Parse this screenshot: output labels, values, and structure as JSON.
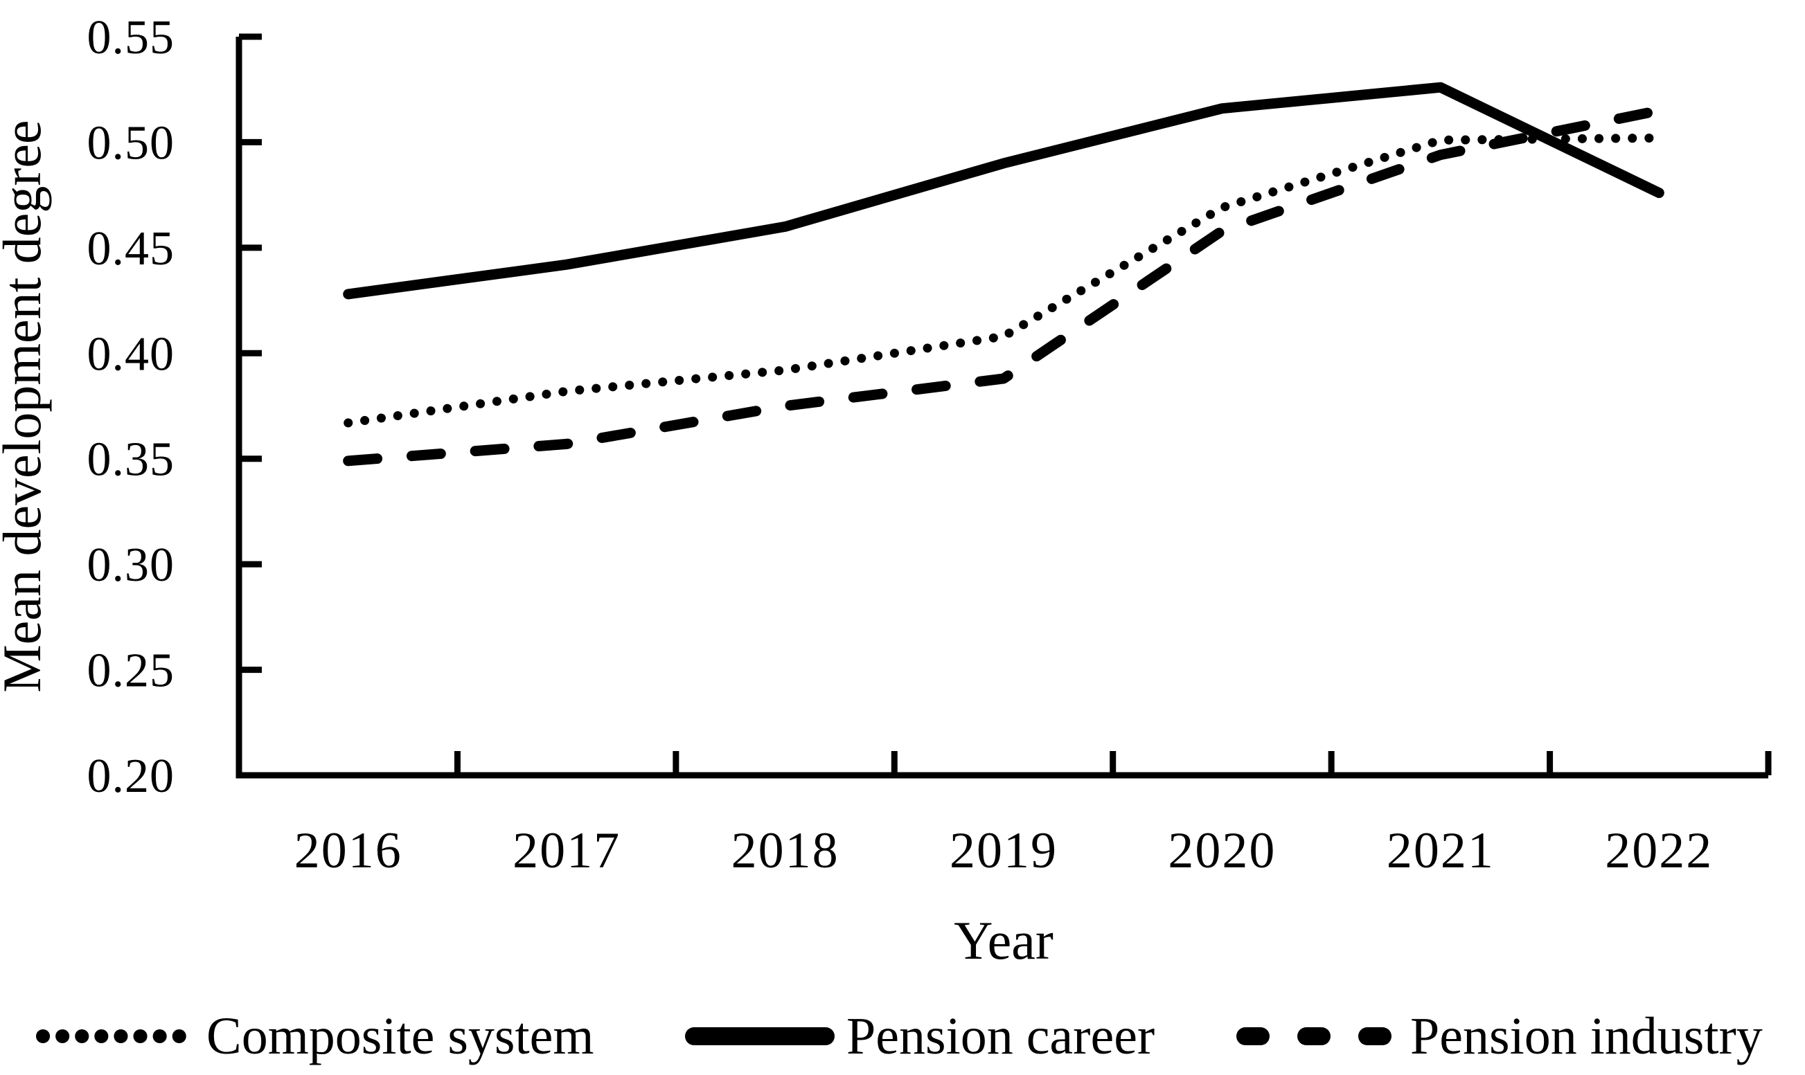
{
  "chart_data": {
    "type": "line",
    "title": "",
    "xlabel": "Year",
    "ylabel": "Mean development degree",
    "categories": [
      "2016",
      "2017",
      "2018",
      "2019",
      "2020",
      "2021",
      "2022"
    ],
    "ylim": [
      0.2,
      0.55
    ],
    "ytick_step": 0.05,
    "ytick_labels": [
      "0.55",
      "0.50",
      "0.45",
      "0.40",
      "0.35",
      "0.30",
      "0.25",
      "0.20"
    ],
    "grid": false,
    "legend_position": "bottom",
    "axis_color": "#000000",
    "background_color": "#ffffff",
    "series": [
      {
        "name": "Composite system",
        "style": "dotted",
        "color": "#000000",
        "values": [
          0.367,
          0.382,
          0.392,
          0.408,
          0.469,
          0.501,
          0.502
        ]
      },
      {
        "name": "Pension career",
        "style": "solid",
        "color": "#000000",
        "values": [
          0.428,
          0.442,
          0.46,
          0.49,
          0.516,
          0.526,
          0.476
        ]
      },
      {
        "name": "Pension industry",
        "style": "dashed",
        "color": "#000000",
        "values": [
          0.349,
          0.357,
          0.375,
          0.388,
          0.458,
          0.494,
          0.515
        ]
      }
    ]
  }
}
